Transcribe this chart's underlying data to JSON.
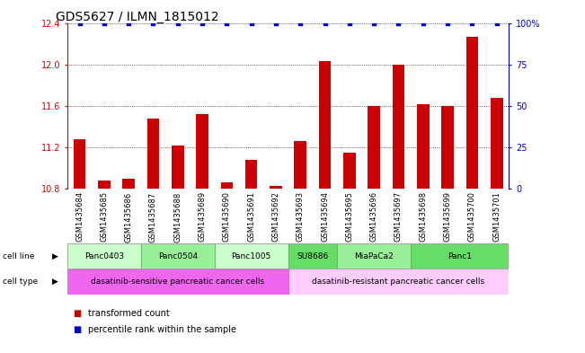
{
  "title": "GDS5627 / ILMN_1815012",
  "samples": [
    "GSM1435684",
    "GSM1435685",
    "GSM1435686",
    "GSM1435687",
    "GSM1435688",
    "GSM1435689",
    "GSM1435690",
    "GSM1435691",
    "GSM1435692",
    "GSM1435693",
    "GSM1435694",
    "GSM1435695",
    "GSM1435696",
    "GSM1435697",
    "GSM1435698",
    "GSM1435699",
    "GSM1435700",
    "GSM1435701"
  ],
  "transformed_counts": [
    11.28,
    10.88,
    10.9,
    11.48,
    11.22,
    11.52,
    10.86,
    11.08,
    10.83,
    11.26,
    12.03,
    11.15,
    11.6,
    12.0,
    11.62,
    11.6,
    12.27,
    11.68
  ],
  "percentile_ranks": [
    99,
    99,
    99,
    99,
    99,
    99,
    99,
    99,
    99,
    99,
    99,
    99,
    99,
    99,
    99,
    99,
    99,
    99
  ],
  "bar_color": "#cc0000",
  "dot_color": "#0000cc",
  "ylim_left": [
    10.8,
    12.4
  ],
  "ylim_right": [
    0,
    100
  ],
  "yticks_left": [
    10.8,
    11.2,
    11.6,
    12.0,
    12.4
  ],
  "yticks_right": [
    0,
    25,
    50,
    75,
    100
  ],
  "ytick_labels_right": [
    "0",
    "25",
    "50",
    "75",
    "100%"
  ],
  "cell_lines": [
    {
      "label": "Panc0403",
      "start": 0,
      "end": 2,
      "color": "#ccffcc"
    },
    {
      "label": "Panc0504",
      "start": 3,
      "end": 5,
      "color": "#99ee99"
    },
    {
      "label": "Panc1005",
      "start": 6,
      "end": 8,
      "color": "#ccffcc"
    },
    {
      "label": "SU8686",
      "start": 9,
      "end": 10,
      "color": "#66dd66"
    },
    {
      "label": "MiaPaCa2",
      "start": 11,
      "end": 13,
      "color": "#99ee99"
    },
    {
      "label": "Panc1",
      "start": 14,
      "end": 17,
      "color": "#66dd66"
    }
  ],
  "cell_types": [
    {
      "label": "dasatinib-sensitive pancreatic cancer cells",
      "start": 0,
      "end": 8,
      "color": "#ee66ee"
    },
    {
      "label": "dasatinib-resistant pancreatic cancer cells",
      "start": 9,
      "end": 17,
      "color": "#ffccff"
    }
  ],
  "background_color": "#ffffff",
  "grid_color": "#000000",
  "title_fontsize": 10,
  "tick_fontsize": 7,
  "bar_width": 0.5,
  "xtick_gray": "#cccccc",
  "xticklabel_fontsize": 6
}
